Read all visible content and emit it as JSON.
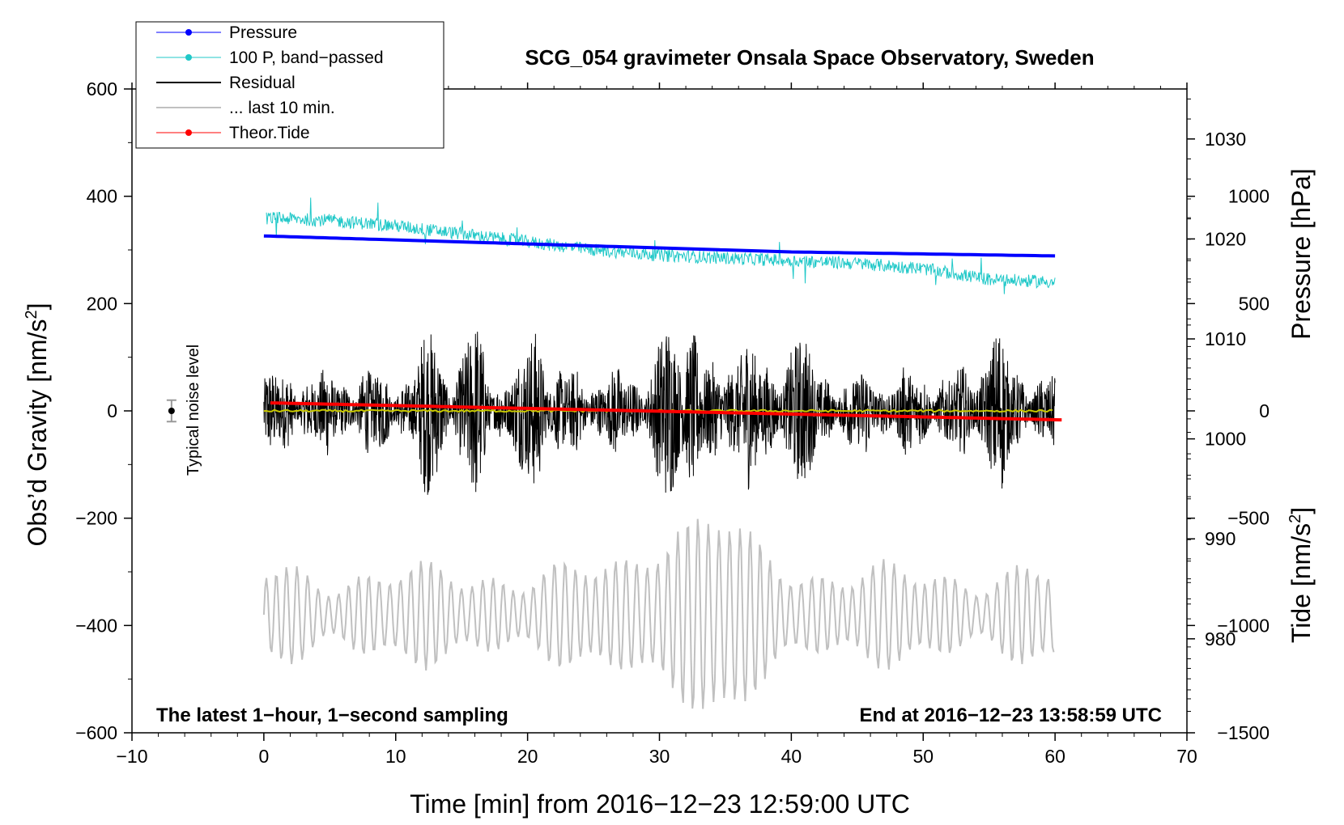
{
  "chart_data": {
    "type": "line",
    "title": "SCG_054 gravimeter Onsala Space Observatory, Sweden",
    "xlabel": "Time [min] from 2016−12−23 12:59:00 UTC",
    "ylabel_left_main": "Obs’d Gravity [nm/s",
    "ylabel_left_sup": "2",
    "ylabel_left_end": "]",
    "ylabel_right_pressure": "Pressure [hPa]",
    "ylabel_right_tide_main": "Tide [nm/s",
    "ylabel_right_tide_sup": "2",
    "ylabel_right_tide_end": "]",
    "xlim": [
      -10,
      70
    ],
    "ylim_left": [
      -600,
      600
    ],
    "ylim_pressure": [
      970.6,
      1035
    ],
    "ylim_tide": [
      -1500,
      1500
    ],
    "x_ticks": [
      -10,
      0,
      10,
      20,
      30,
      40,
      50,
      60,
      70
    ],
    "x_tick_labels": [
      "−10",
      "0",
      "10",
      "20",
      "30",
      "40",
      "50",
      "60",
      "70"
    ],
    "y_left_ticks": [
      600,
      400,
      200,
      0,
      -200,
      -400,
      -600
    ],
    "y_left_tick_labels": [
      "600",
      "400",
      "200",
      "0",
      "−200",
      "−400",
      "−600"
    ],
    "pressure_ticks": [
      1030,
      1020,
      1010,
      1000,
      990,
      980
    ],
    "pressure_tick_labels": [
      "1030",
      "1020",
      "1010",
      "1000",
      "990",
      "980"
    ],
    "tide_ticks": [
      1000,
      500,
      0,
      -500,
      -1000,
      -1500
    ],
    "tide_tick_labels": [
      "1000",
      "500",
      "0",
      "−500",
      "−1000",
      "−1500"
    ],
    "noise_bar": {
      "x": -7,
      "y": 0,
      "half_range": 20,
      "label": "Typical noise level"
    },
    "note_left": "The latest 1−hour, 1−second sampling",
    "note_right": "End at 2016−12−23 13:58:59 UTC",
    "series": [
      {
        "name": "Pressure",
        "legend": "Pressure",
        "color": "#0000ff",
        "unit": "hPa",
        "axis": "pressure",
        "x": [
          0,
          20,
          40,
          50,
          60
        ],
        "values": [
          1020.3,
          1019.5,
          1018.7,
          1018.5,
          1018.3
        ]
      },
      {
        "name": "100 P, band−passed",
        "legend": "100 P, band−passed",
        "color": "#20c8c8",
        "unit": "nm/s2",
        "axis": "left",
        "x": [
          0,
          5,
          10,
          15,
          20,
          25,
          30,
          35,
          40,
          45,
          50,
          55,
          60
        ],
        "values": [
          360,
          355,
          345,
          330,
          315,
          300,
          290,
          285,
          280,
          275,
          265,
          245,
          240
        ]
      },
      {
        "name": "Residual",
        "legend": "Residual",
        "color": "#000000",
        "unit": "nm/s2",
        "axis": "left",
        "x_range": [
          0,
          60
        ],
        "baseline": 0,
        "peak_amplitude": 180
      },
      {
        "name": "Residual smoothed",
        "color": "#c8c800",
        "unit": "nm/s2",
        "axis": "left",
        "x_range": [
          0,
          60
        ],
        "values_constant": 0
      },
      {
        "name": "... last 10 min.",
        "legend": "... last 10 min.",
        "color": "#c0c0c0",
        "unit": "nm/s2",
        "axis": "left",
        "x_range": [
          0,
          60
        ],
        "baseline": -380,
        "peak_amplitude": 180
      },
      {
        "name": "Theor.Tide",
        "legend": "Theor.Tide",
        "color": "#ff0000",
        "unit": "nm/s2",
        "axis": "tide",
        "x": [
          0,
          60.5
        ],
        "values": [
          38,
          -42
        ]
      }
    ],
    "legend_position": "top-left"
  }
}
